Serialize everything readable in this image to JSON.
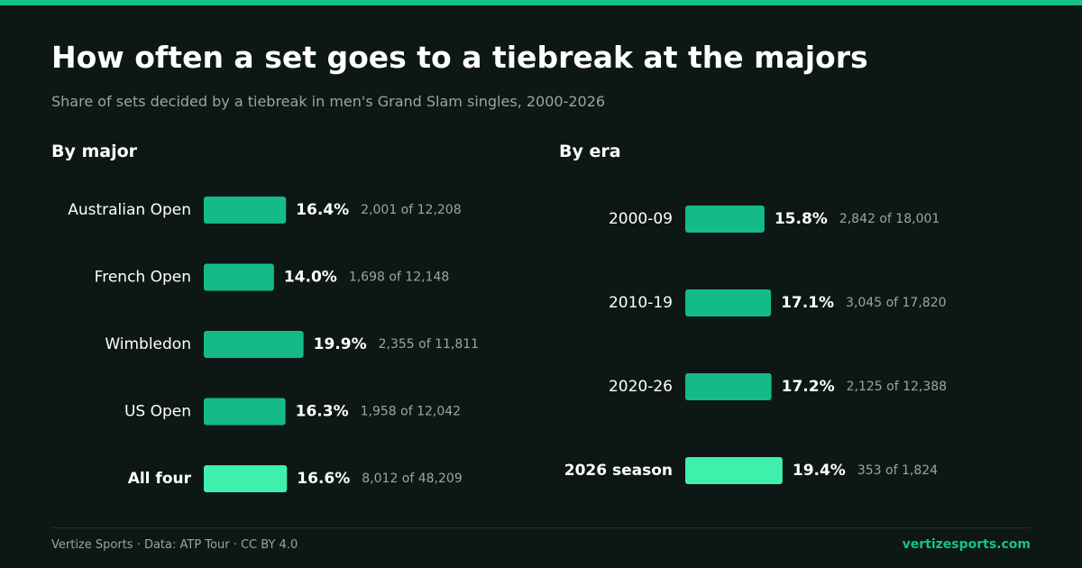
{
  "title": "How often a set goes to a tiebreak at the majors",
  "subtitle": "Share of sets decided by a tiebreak in men's Grand Slam singles, 2000-2026",
  "colors": {
    "bar": "#14bb87",
    "highlight_bar": "#3ff0ad",
    "background": "#0d1715",
    "accent": "#14c28a",
    "muted_text": "#9aa6a2"
  },
  "chart_data": [
    {
      "type": "bar",
      "orientation": "horizontal",
      "title": "By major",
      "categories": [
        "Australian Open",
        "French Open",
        "Wimbledon",
        "US Open",
        "All four"
      ],
      "values": [
        16.4,
        14.0,
        19.9,
        16.3,
        16.6
      ],
      "value_labels": [
        "16.4%",
        "14.0%",
        "19.9%",
        "16.3%",
        "16.6%"
      ],
      "annotations": [
        "2,001 of 12,208",
        "1,698 of 12,148",
        "2,355 of 11,811",
        "1,958 of 12,042",
        "8,012 of 48,209"
      ],
      "highlight": [
        false,
        false,
        false,
        false,
        true
      ],
      "unit": "%",
      "grid": false
    },
    {
      "type": "bar",
      "orientation": "horizontal",
      "title": "By era",
      "categories": [
        "2000-09",
        "2010-19",
        "2020-26",
        "2026 season"
      ],
      "values": [
        15.8,
        17.1,
        17.2,
        19.4
      ],
      "value_labels": [
        "15.8%",
        "17.1%",
        "17.2%",
        "19.4%"
      ],
      "annotations": [
        "2,842 of 18,001",
        "3,045 of 17,820",
        "2,125 of 12,388",
        "353 of 1,824"
      ],
      "highlight": [
        false,
        false,
        false,
        true
      ],
      "unit": "%",
      "grid": false
    }
  ],
  "footer": {
    "credit": "Vertize Sports · Data: ATP Tour · CC BY 4.0",
    "site": "vertizesports.com"
  }
}
